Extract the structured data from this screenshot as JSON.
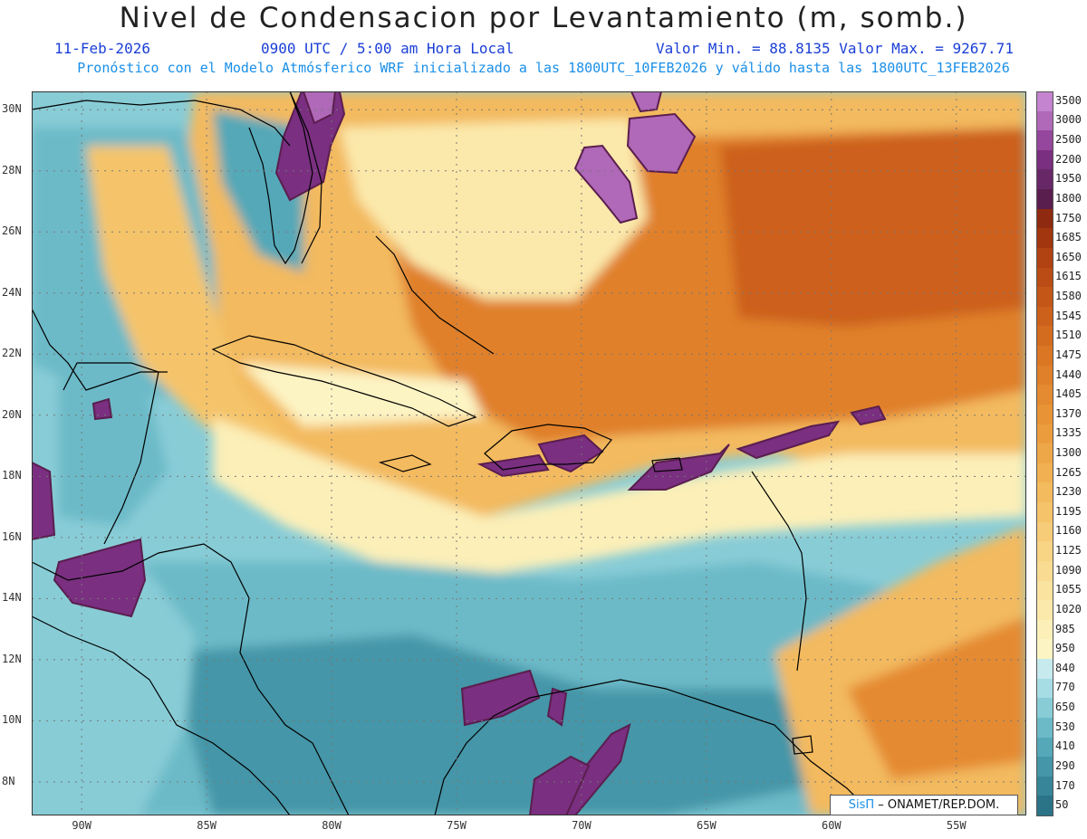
{
  "header": {
    "title": "Nivel de Condensacion por Levantamiento (m, somb.)",
    "date": "11-Feb-2026",
    "time": "0900 UTC / 5:00 am Hora Local",
    "min_max": "Valor Min. = 88.8135  Valor Max. = 9267.71",
    "forecast_note": "Pronóstico con el Modelo Atmósferico WRF inicializado a las 1800UTC_10FEB2026 y válido hasta las  1800UTC_13FEB2026"
  },
  "credit": {
    "brand": "SisΠ",
    "org": " – ONAMET/REP.DOM."
  },
  "map_region": {
    "lon_range": [
      -92,
      -52.2
    ],
    "lat_range": [
      6.9,
      30.6
    ]
  },
  "x_ticks": [
    "90W",
    "85W",
    "80W",
    "75W",
    "70W",
    "65W",
    "60W",
    "55W"
  ],
  "y_ticks": [
    "30N",
    "28N",
    "26N",
    "24N",
    "22N",
    "20N",
    "18N",
    "16N",
    "14N",
    "12N",
    "10N",
    "8N"
  ],
  "legend": {
    "labels": [
      "3500",
      "3000",
      "2500",
      "2200",
      "1950",
      "1800",
      "1750",
      "1685",
      "1650",
      "1615",
      "1580",
      "1545",
      "1510",
      "1475",
      "1440",
      "1405",
      "1370",
      "1335",
      "1300",
      "1265",
      "1230",
      "1195",
      "1160",
      "1125",
      "1090",
      "1055",
      "1020",
      "985",
      "950",
      "840",
      "770",
      "650",
      "530",
      "410",
      "290",
      "170",
      "50"
    ],
    "colors": [
      "#c484cf",
      "#b068b8",
      "#94479c",
      "#7a2f80",
      "#682868",
      "#5a1e4e",
      "#8e2a10",
      "#a1360f",
      "#b14212",
      "#bc4c15",
      "#c45618",
      "#cc611b",
      "#d46c1f",
      "#da7624",
      "#e0802a",
      "#e48a30",
      "#e89436",
      "#eb9d3e",
      "#eea748",
      "#f1b152",
      "#f3ba5e",
      "#f5c46a",
      "#f7cc78",
      "#f8d485",
      "#f9dc92",
      "#fae39f",
      "#fbe9ab",
      "#fcefb8",
      "#fdf4c4",
      "#c6eaee",
      "#a6dde4",
      "#88ccd6",
      "#6cbac8",
      "#55a8b8",
      "#4596a8",
      "#378598",
      "#2b7488"
    ]
  }
}
